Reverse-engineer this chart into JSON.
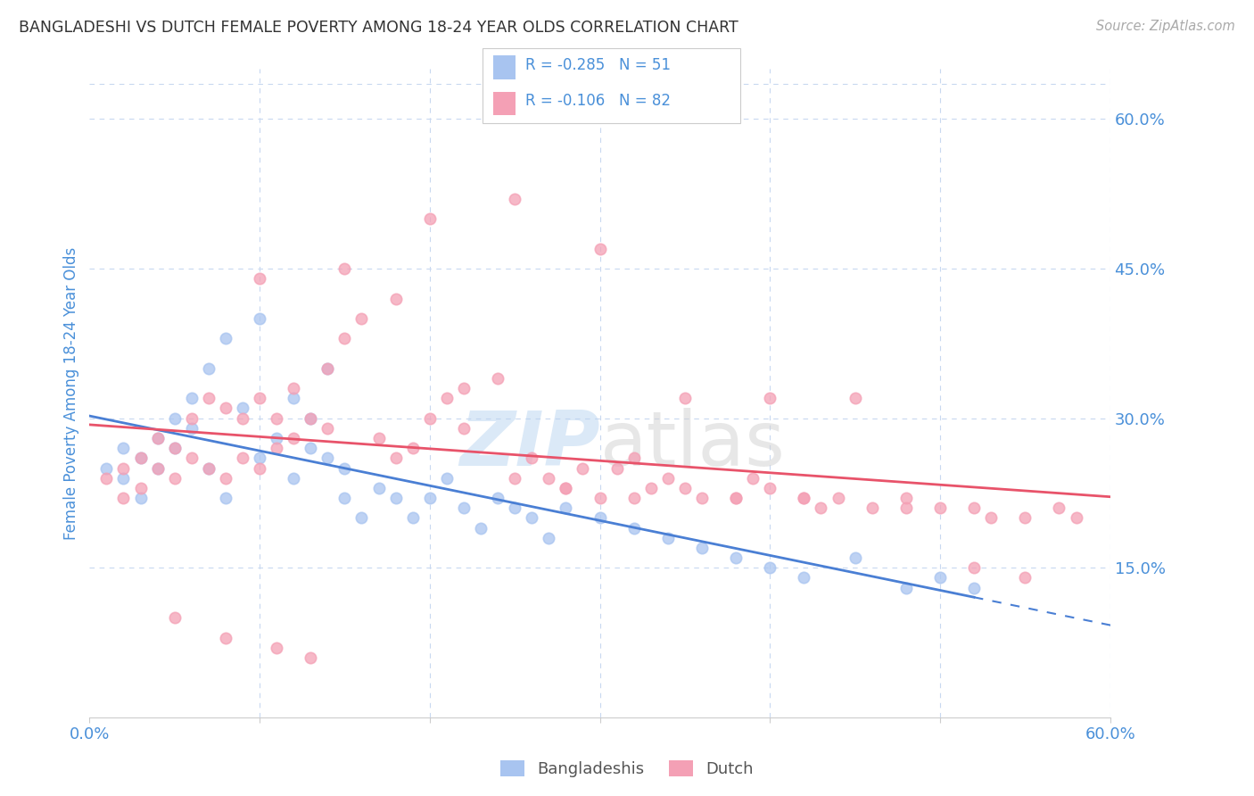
{
  "title": "BANGLADESHI VS DUTCH FEMALE POVERTY AMONG 18-24 YEAR OLDS CORRELATION CHART",
  "source": "Source: ZipAtlas.com",
  "ylabel": "Female Poverty Among 18-24 Year Olds",
  "xlim": [
    0.0,
    0.6
  ],
  "ylim": [
    0.0,
    0.65
  ],
  "blue_color": "#a8c4f0",
  "pink_color": "#f4a0b5",
  "line_blue_color": "#4a7fd4",
  "line_pink_color": "#e8536a",
  "grid_color": "#c8d8f0",
  "axis_label_color": "#4a90d9",
  "background_color": "#ffffff",
  "bangladeshi_x": [
    0.01,
    0.02,
    0.02,
    0.03,
    0.03,
    0.04,
    0.04,
    0.05,
    0.05,
    0.06,
    0.06,
    0.07,
    0.07,
    0.08,
    0.08,
    0.09,
    0.1,
    0.1,
    0.11,
    0.12,
    0.12,
    0.13,
    0.13,
    0.14,
    0.14,
    0.15,
    0.15,
    0.16,
    0.17,
    0.18,
    0.19,
    0.2,
    0.21,
    0.22,
    0.23,
    0.24,
    0.25,
    0.26,
    0.27,
    0.28,
    0.3,
    0.32,
    0.34,
    0.36,
    0.38,
    0.4,
    0.42,
    0.45,
    0.48,
    0.5,
    0.52
  ],
  "bangladeshi_y": [
    0.25,
    0.27,
    0.24,
    0.26,
    0.22,
    0.28,
    0.25,
    0.3,
    0.27,
    0.29,
    0.32,
    0.35,
    0.25,
    0.38,
    0.22,
    0.31,
    0.4,
    0.26,
    0.28,
    0.32,
    0.24,
    0.27,
    0.3,
    0.26,
    0.35,
    0.22,
    0.25,
    0.2,
    0.23,
    0.22,
    0.2,
    0.22,
    0.24,
    0.21,
    0.19,
    0.22,
    0.21,
    0.2,
    0.18,
    0.21,
    0.2,
    0.19,
    0.18,
    0.17,
    0.16,
    0.15,
    0.14,
    0.16,
    0.13,
    0.14,
    0.13
  ],
  "dutch_x": [
    0.01,
    0.02,
    0.02,
    0.03,
    0.03,
    0.04,
    0.04,
    0.05,
    0.05,
    0.06,
    0.06,
    0.07,
    0.07,
    0.08,
    0.08,
    0.09,
    0.09,
    0.1,
    0.1,
    0.11,
    0.11,
    0.12,
    0.12,
    0.13,
    0.14,
    0.14,
    0.15,
    0.16,
    0.17,
    0.18,
    0.19,
    0.2,
    0.21,
    0.22,
    0.24,
    0.25,
    0.26,
    0.27,
    0.28,
    0.29,
    0.3,
    0.31,
    0.32,
    0.33,
    0.34,
    0.35,
    0.36,
    0.38,
    0.39,
    0.4,
    0.42,
    0.43,
    0.44,
    0.45,
    0.46,
    0.48,
    0.5,
    0.52,
    0.53,
    0.55,
    0.57,
    0.58,
    0.2,
    0.25,
    0.3,
    0.1,
    0.15,
    0.18,
    0.22,
    0.35,
    0.4,
    0.28,
    0.32,
    0.38,
    0.42,
    0.48,
    0.52,
    0.55,
    0.05,
    0.08,
    0.11,
    0.13
  ],
  "dutch_y": [
    0.24,
    0.25,
    0.22,
    0.26,
    0.23,
    0.25,
    0.28,
    0.24,
    0.27,
    0.26,
    0.3,
    0.25,
    0.32,
    0.24,
    0.31,
    0.26,
    0.3,
    0.25,
    0.32,
    0.27,
    0.3,
    0.28,
    0.33,
    0.3,
    0.35,
    0.29,
    0.38,
    0.4,
    0.28,
    0.26,
    0.27,
    0.3,
    0.32,
    0.29,
    0.34,
    0.24,
    0.26,
    0.24,
    0.23,
    0.25,
    0.22,
    0.25,
    0.26,
    0.23,
    0.24,
    0.23,
    0.22,
    0.22,
    0.24,
    0.23,
    0.22,
    0.21,
    0.22,
    0.32,
    0.21,
    0.22,
    0.21,
    0.21,
    0.2,
    0.2,
    0.21,
    0.2,
    0.5,
    0.52,
    0.47,
    0.44,
    0.45,
    0.42,
    0.33,
    0.32,
    0.32,
    0.23,
    0.22,
    0.22,
    0.22,
    0.21,
    0.15,
    0.14,
    0.1,
    0.08,
    0.07,
    0.06
  ]
}
